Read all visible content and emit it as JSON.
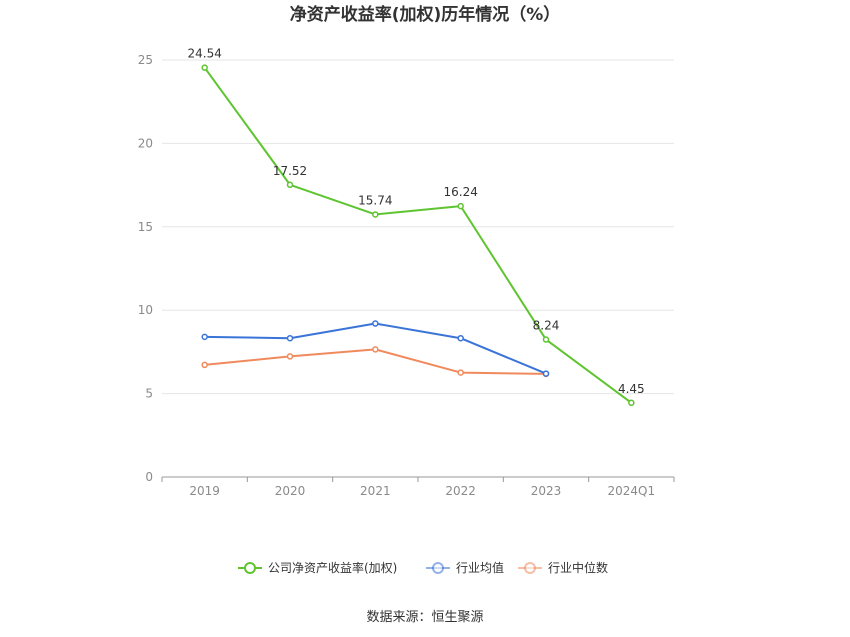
{
  "chart_data": {
    "type": "line",
    "title": "净资产收益率(加权)历年情况（%）",
    "categories": [
      "2019",
      "2020",
      "2021",
      "2022",
      "2023",
      "2024Q1"
    ],
    "ylim": [
      0,
      25
    ],
    "yticks": [
      0,
      5,
      10,
      15,
      20,
      25
    ],
    "grid": true,
    "legend_position": "bottom",
    "series": [
      {
        "name": "公司净资产收益率(加权)",
        "color": "#5ec42f",
        "values": [
          24.54,
          17.52,
          15.74,
          16.24,
          8.24,
          4.45
        ],
        "labels": [
          "24.54",
          "17.52",
          "15.74",
          "16.24",
          "8.24",
          "4.45"
        ]
      },
      {
        "name": "行业均值",
        "color": "#3a74d8",
        "values": [
          8.4,
          8.32,
          9.2,
          8.32,
          6.2,
          null
        ]
      },
      {
        "name": "行业中位数",
        "color": "#f08a5d",
        "values": [
          6.72,
          7.23,
          7.65,
          6.26,
          6.18,
          null
        ]
      }
    ]
  },
  "source_text": "数据来源：恒生聚源"
}
